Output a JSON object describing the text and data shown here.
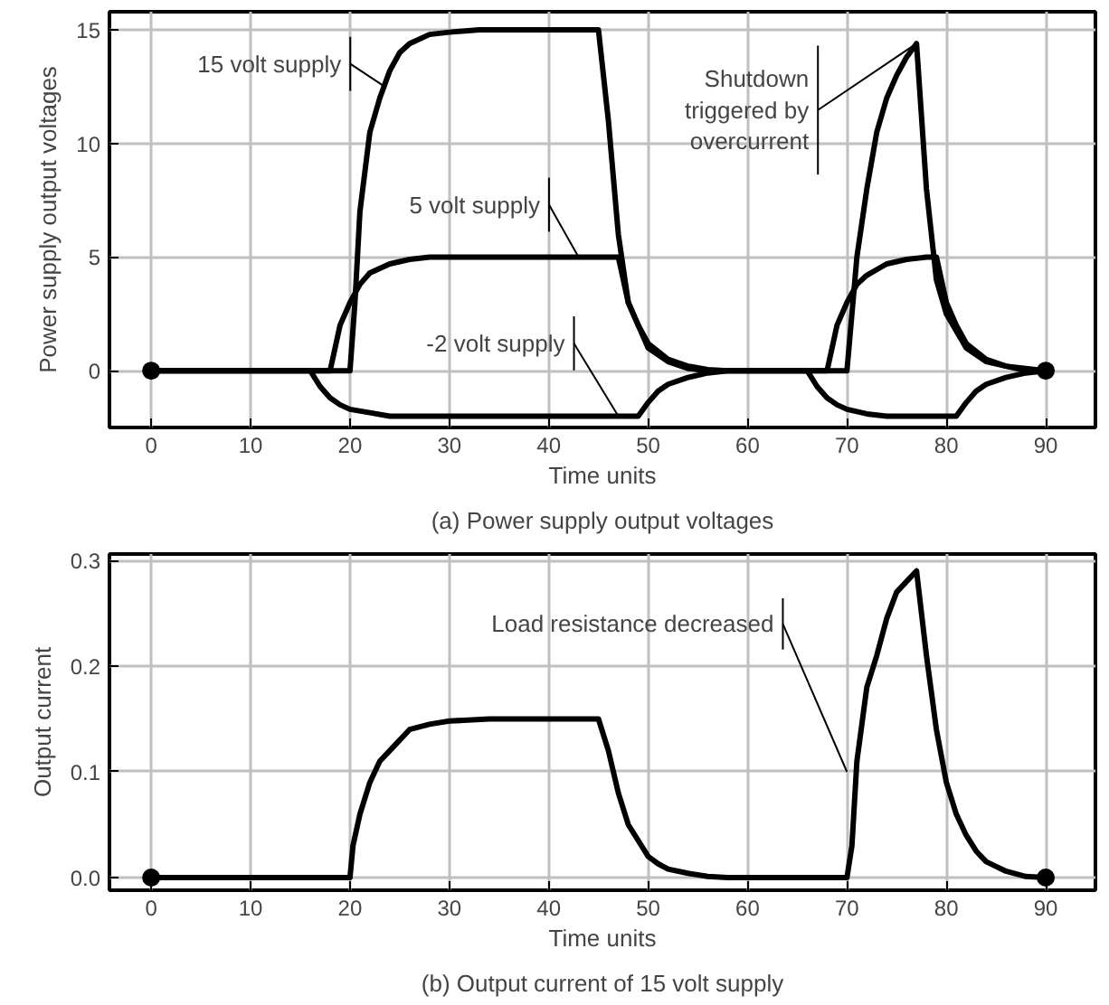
{
  "chart_data": [
    {
      "type": "line",
      "title": "(a) Power supply output voltages",
      "xlabel": "Time units",
      "ylabel": "Power supply output voltages",
      "xlim": [
        -4.2,
        95
      ],
      "ylim": [
        -2.5,
        15.8
      ],
      "xticks": [
        0,
        10,
        20,
        30,
        40,
        50,
        60,
        70,
        80,
        90
      ],
      "yticks": [
        0,
        5,
        10,
        15
      ],
      "grid": true,
      "line_style": "solid",
      "marker": "none",
      "series": [
        {
          "color": "#000000",
          "x": [
            0,
            20,
            20.5,
            21,
            22,
            23,
            24,
            25,
            26,
            28,
            30,
            33,
            45,
            46,
            47,
            48,
            49,
            50,
            52,
            54,
            56,
            70,
            71,
            72,
            73,
            74,
            75,
            76,
            77,
            78,
            79,
            80,
            82,
            84,
            86,
            88,
            90
          ],
          "values": [
            0,
            0,
            3,
            7,
            10.5,
            12,
            13.2,
            14,
            14.4,
            14.8,
            14.9,
            15,
            15,
            11,
            6,
            3,
            2,
            1,
            0.4,
            0.1,
            0,
            0,
            5,
            8,
            10.5,
            12,
            13,
            13.8,
            14.4,
            8,
            4,
            2.5,
            1,
            0.4,
            0.2,
            0.1,
            0
          ]
        },
        {
          "color": "#000000",
          "x": [
            0,
            18,
            18.5,
            19,
            20,
            21,
            22,
            24,
            26,
            28,
            47,
            48,
            49,
            50,
            52,
            54,
            56,
            58,
            68,
            68.5,
            69,
            70,
            71,
            72,
            74,
            76,
            78,
            79,
            80,
            81,
            82,
            84,
            86,
            88,
            90
          ],
          "values": [
            0,
            0,
            1,
            2,
            3,
            3.8,
            4.3,
            4.7,
            4.9,
            5,
            5,
            3,
            2,
            1.2,
            0.5,
            0.2,
            0.05,
            0,
            0,
            1,
            2,
            3,
            3.8,
            4.2,
            4.7,
            4.9,
            5,
            5,
            3,
            2,
            1.2,
            0.5,
            0.2,
            0,
            0
          ]
        },
        {
          "color": "#000000",
          "x": [
            0,
            16,
            17,
            18,
            19,
            20,
            22,
            24,
            49,
            50,
            51,
            52,
            54,
            56,
            58,
            66,
            67,
            68,
            69,
            70,
            72,
            74,
            81,
            82,
            83,
            84,
            86,
            88,
            90
          ],
          "values": [
            0,
            0,
            -0.7,
            -1.2,
            -1.5,
            -1.7,
            -1.85,
            -2,
            -2,
            -1.4,
            -0.9,
            -0.6,
            -0.3,
            -0.1,
            0,
            0,
            -0.7,
            -1.2,
            -1.5,
            -1.7,
            -1.9,
            -2,
            -2,
            -1.4,
            -0.9,
            -0.6,
            -0.3,
            -0.1,
            0
          ]
        },
        {
          "type": "scatter",
          "marker": "circle",
          "color": "#000000",
          "x": [
            0,
            90
          ],
          "values": [
            0,
            0
          ]
        }
      ],
      "annotations": [
        {
          "text": "15 volt supply",
          "x": 23.5,
          "y": 12.5
        },
        {
          "text": "5 volt supply",
          "x": 43,
          "y": 5
        },
        {
          "text": "-2 volt supply",
          "x": 47,
          "y": -2
        },
        {
          "text": "Shutdown\ntriggered by\novercurrent",
          "x": 77,
          "y": 14.4
        }
      ]
    },
    {
      "type": "line",
      "title": "(b) Output current of 15 volt supply",
      "xlabel": "Time units",
      "ylabel": "Output current",
      "xlim": [
        -4.2,
        95
      ],
      "ylim": [
        -0.012,
        0.306
      ],
      "xticks": [
        0,
        10,
        20,
        30,
        40,
        50,
        60,
        70,
        80,
        90
      ],
      "yticks": [
        {
          "value": 0,
          "label": "0.0"
        },
        0.1,
        0.2,
        0.3
      ],
      "grid": true,
      "line_style": "solid",
      "marker": "none",
      "series": [
        {
          "color": "#000000",
          "x": [
            0,
            20,
            20.3,
            21,
            22,
            23,
            24,
            25,
            26,
            28,
            30,
            34,
            45,
            46,
            47,
            48,
            49,
            50,
            51,
            52,
            54,
            56,
            58,
            70,
            70.5,
            71,
            72,
            73,
            74,
            75,
            76,
            77,
            78,
            79,
            80,
            81,
            82,
            83,
            84,
            86,
            88,
            90
          ],
          "values": [
            0,
            0,
            0.03,
            0.06,
            0.09,
            0.11,
            0.12,
            0.13,
            0.14,
            0.145,
            0.148,
            0.15,
            0.15,
            0.12,
            0.08,
            0.05,
            0.035,
            0.02,
            0.013,
            0.008,
            0.004,
            0.001,
            0,
            0,
            0.03,
            0.11,
            0.18,
            0.21,
            0.245,
            0.27,
            0.28,
            0.29,
            0.21,
            0.14,
            0.09,
            0.06,
            0.04,
            0.025,
            0.015,
            0.006,
            0.001,
            0
          ]
        },
        {
          "type": "scatter",
          "marker": "circle",
          "color": "#000000",
          "x": [
            0,
            90
          ],
          "values": [
            0,
            0
          ]
        }
      ],
      "annotations": [
        {
          "text": "Load resistance decreased",
          "x": 70,
          "y": 0.1
        }
      ]
    }
  ]
}
